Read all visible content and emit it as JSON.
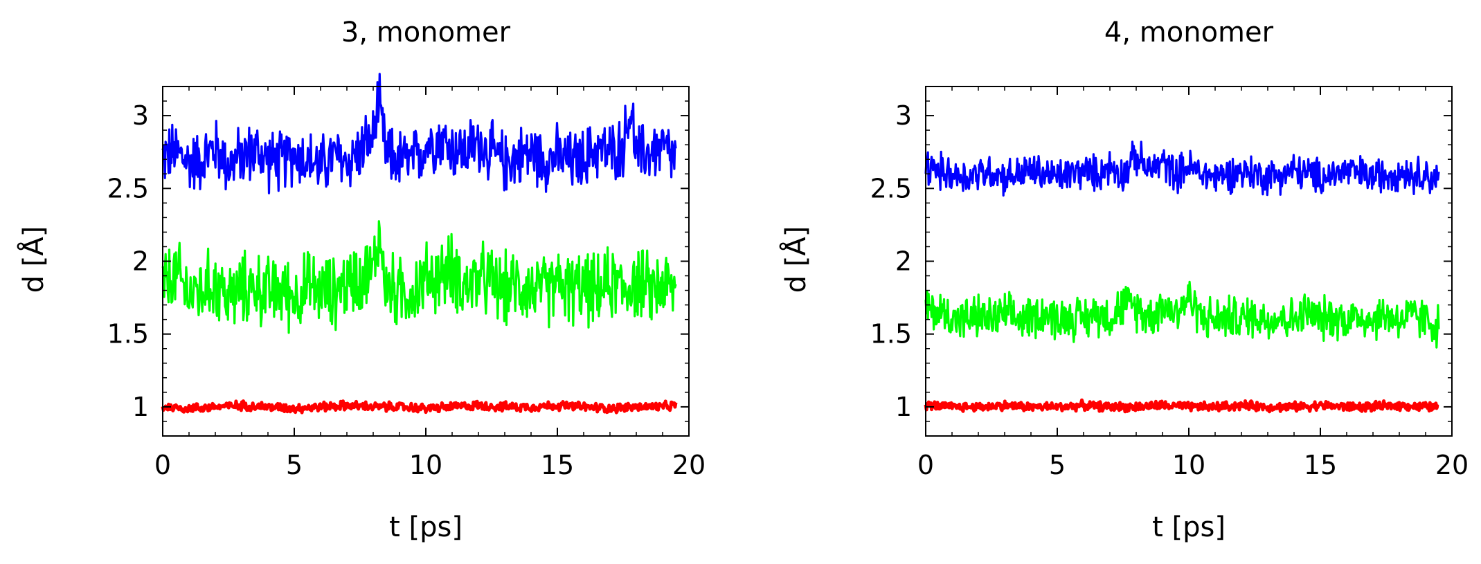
{
  "colors": {
    "blue": "#0000ff",
    "green": "#00ff00",
    "red": "#ff0000",
    "axis": "#000000"
  },
  "chart_data": [
    {
      "type": "line",
      "title": "3, monomer",
      "xlabel": "t [ps]",
      "ylabel": "d [Å]",
      "xlim": [
        0,
        20
      ],
      "ylim": [
        0.8,
        3.2
      ],
      "xticks": [
        "0",
        "5",
        "10",
        "15",
        "20"
      ],
      "yticks": [
        "1",
        "1.5",
        "2",
        "2.5",
        "3"
      ],
      "grid": false,
      "series": [
        {
          "color": "#0000ff",
          "x": [
            0,
            0.5,
            1,
            1.5,
            2,
            2.5,
            3,
            3.5,
            4,
            4.5,
            5,
            5.5,
            6,
            6.5,
            7,
            7.5,
            8,
            8.2,
            8.5,
            9,
            9.5,
            10,
            10.5,
            11,
            11.5,
            12,
            12.5,
            13,
            13.5,
            14,
            14.5,
            15,
            15.5,
            16,
            16.5,
            17,
            17.5,
            17.8,
            18,
            18.5,
            19,
            19.5
          ],
          "y": [
            2.72,
            2.75,
            2.68,
            2.7,
            2.78,
            2.66,
            2.72,
            2.76,
            2.7,
            2.68,
            2.74,
            2.7,
            2.65,
            2.72,
            2.68,
            2.76,
            2.85,
            3.1,
            2.72,
            2.7,
            2.68,
            2.8,
            2.85,
            2.78,
            2.75,
            2.82,
            2.74,
            2.68,
            2.72,
            2.75,
            2.7,
            2.72,
            2.68,
            2.7,
            2.78,
            2.74,
            2.8,
            3.05,
            2.72,
            2.75,
            2.78,
            2.7
          ]
        },
        {
          "color": "#00ff00",
          "x": [
            0,
            0.5,
            1,
            1.5,
            2,
            2.5,
            3,
            3.5,
            4,
            4.5,
            5,
            5.5,
            6,
            6.5,
            7,
            7.5,
            8,
            8.2,
            8.5,
            9,
            9.5,
            10,
            10.5,
            11,
            11.5,
            12,
            12.5,
            13,
            13.5,
            14,
            14.5,
            15,
            15.5,
            16,
            16.5,
            17,
            17.5,
            18,
            18.5,
            19,
            19.5
          ],
          "y": [
            1.82,
            1.9,
            1.78,
            1.8,
            1.85,
            1.75,
            1.8,
            1.83,
            1.78,
            1.8,
            1.76,
            1.82,
            1.8,
            1.78,
            1.85,
            1.9,
            1.92,
            2.2,
            1.82,
            1.78,
            1.8,
            1.88,
            1.9,
            1.95,
            1.82,
            1.88,
            1.85,
            1.8,
            1.84,
            1.82,
            1.78,
            1.85,
            1.8,
            1.82,
            1.78,
            1.85,
            1.82,
            1.86,
            1.8,
            1.85,
            1.78
          ]
        },
        {
          "color": "#ff0000",
          "x": [
            0,
            1,
            2,
            3,
            4,
            5,
            6,
            7,
            8,
            9,
            10,
            11,
            12,
            13,
            14,
            15,
            16,
            17,
            18,
            19,
            19.5
          ],
          "y": [
            1.0,
            0.99,
            1.0,
            1.01,
            1.0,
            0.99,
            1.0,
            1.01,
            1.0,
            1.0,
            0.99,
            1.0,
            1.01,
            1.0,
            1.0,
            1.01,
            1.0,
            0.99,
            1.0,
            1.0,
            1.01
          ]
        }
      ]
    },
    {
      "type": "line",
      "title": "4, monomer",
      "xlabel": "t [ps]",
      "ylabel": "d [Å]",
      "xlim": [
        0,
        20
      ],
      "ylim": [
        0.8,
        3.2
      ],
      "xticks": [
        "0",
        "5",
        "10",
        "15",
        "20"
      ],
      "yticks": [
        "1",
        "1.5",
        "2",
        "2.5",
        "3"
      ],
      "grid": false,
      "series": [
        {
          "color": "#0000ff",
          "x": [
            0,
            0.5,
            1,
            1.5,
            2,
            2.5,
            3,
            3.5,
            4,
            4.5,
            5,
            5.5,
            6,
            6.5,
            7,
            7.5,
            8,
            8.5,
            9,
            9.5,
            10,
            10.5,
            11,
            11.5,
            12,
            12.5,
            13,
            13.5,
            14,
            14.5,
            15,
            15.5,
            16,
            16.5,
            17,
            17.5,
            18,
            18.5,
            19,
            19.5
          ],
          "y": [
            2.65,
            2.62,
            2.6,
            2.58,
            2.6,
            2.62,
            2.58,
            2.6,
            2.62,
            2.6,
            2.58,
            2.6,
            2.62,
            2.6,
            2.65,
            2.6,
            2.72,
            2.62,
            2.68,
            2.6,
            2.65,
            2.6,
            2.58,
            2.6,
            2.62,
            2.6,
            2.58,
            2.6,
            2.62,
            2.6,
            2.58,
            2.6,
            2.62,
            2.6,
            2.58,
            2.6,
            2.62,
            2.6,
            2.6,
            2.55
          ]
        },
        {
          "color": "#00ff00",
          "x": [
            0,
            0.5,
            1,
            1.5,
            2,
            2.5,
            3,
            3.5,
            4,
            4.5,
            5,
            5.5,
            6,
            6.5,
            7,
            7.5,
            8,
            8.5,
            9,
            9.5,
            10,
            10.5,
            11,
            11.5,
            12,
            12.5,
            13,
            13.5,
            14,
            14.5,
            15,
            15.5,
            16,
            16.5,
            17,
            17.5,
            18,
            18.5,
            19,
            19.5
          ],
          "y": [
            1.68,
            1.65,
            1.62,
            1.6,
            1.62,
            1.6,
            1.63,
            1.6,
            1.62,
            1.65,
            1.6,
            1.62,
            1.6,
            1.65,
            1.62,
            1.7,
            1.68,
            1.62,
            1.7,
            1.65,
            1.75,
            1.62,
            1.6,
            1.62,
            1.6,
            1.63,
            1.6,
            1.62,
            1.6,
            1.65,
            1.6,
            1.62,
            1.6,
            1.62,
            1.6,
            1.63,
            1.6,
            1.62,
            1.6,
            1.55
          ]
        },
        {
          "color": "#ff0000",
          "x": [
            0,
            1,
            2,
            3,
            4,
            5,
            6,
            7,
            8,
            9,
            10,
            11,
            12,
            13,
            14,
            15,
            16,
            17,
            18,
            19,
            19.5
          ],
          "y": [
            1.01,
            1.0,
            1.0,
            1.01,
            1.0,
            1.0,
            1.01,
            1.0,
            1.0,
            1.01,
            1.0,
            1.0,
            1.01,
            1.0,
            1.0,
            1.01,
            1.0,
            1.0,
            1.01,
            1.0,
            1.0
          ]
        }
      ]
    }
  ]
}
